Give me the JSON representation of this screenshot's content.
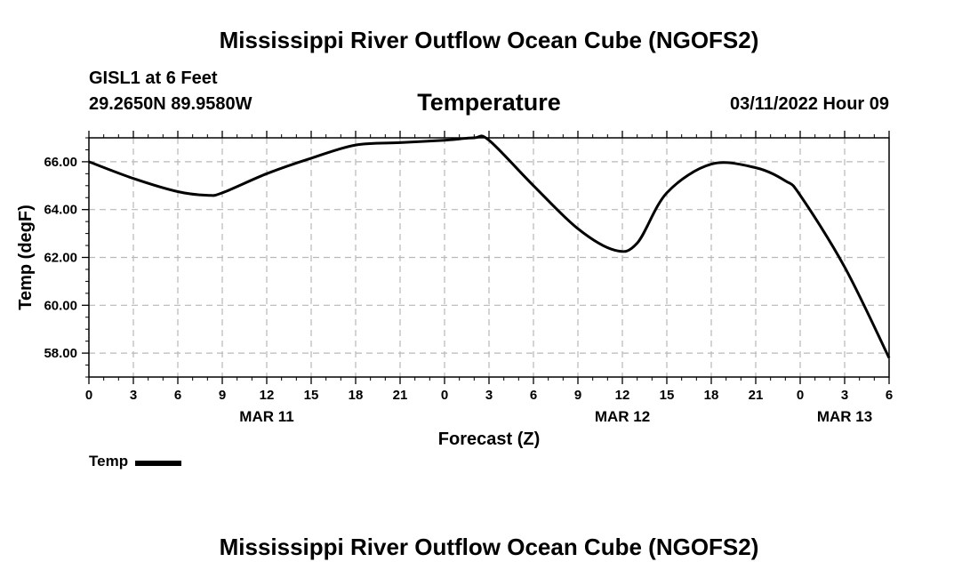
{
  "header": {
    "title": "Mississippi River Outflow Ocean Cube (NGOFS2)",
    "station": "GISL1 at 6 Feet",
    "coordinates": "29.2650N  89.9580W",
    "plot_title": "Temperature",
    "datetime": "03/11/2022 Hour 09"
  },
  "legend": {
    "label": "Temp"
  },
  "footer": {
    "title": "Mississippi River Outflow Ocean Cube (NGOFS2)"
  },
  "chart_data": {
    "type": "line",
    "title": "Temperature",
    "xlabel": "Forecast (Z)",
    "ylabel": "Temp (degF)",
    "xlim": [
      0,
      54
    ],
    "ylim": [
      57.0,
      67.0
    ],
    "grid": true,
    "legend_position": "bottom-left",
    "x_ticks": [
      {
        "x": 0,
        "label": "0"
      },
      {
        "x": 3,
        "label": "3"
      },
      {
        "x": 6,
        "label": "6"
      },
      {
        "x": 9,
        "label": "9"
      },
      {
        "x": 12,
        "label": "12"
      },
      {
        "x": 15,
        "label": "15"
      },
      {
        "x": 18,
        "label": "18"
      },
      {
        "x": 21,
        "label": "21"
      },
      {
        "x": 24,
        "label": "0"
      },
      {
        "x": 27,
        "label": "3"
      },
      {
        "x": 30,
        "label": "6"
      },
      {
        "x": 33,
        "label": "9"
      },
      {
        "x": 36,
        "label": "12"
      },
      {
        "x": 39,
        "label": "15"
      },
      {
        "x": 42,
        "label": "18"
      },
      {
        "x": 45,
        "label": "21"
      },
      {
        "x": 48,
        "label": "0"
      },
      {
        "x": 51,
        "label": "3"
      },
      {
        "x": 54,
        "label": "6"
      }
    ],
    "date_labels": [
      {
        "x": 12,
        "label": "MAR 11"
      },
      {
        "x": 36,
        "label": "MAR 12"
      },
      {
        "x": 51,
        "label": "MAR 13"
      }
    ],
    "y_ticks": [
      {
        "y": 58,
        "label": "58.00"
      },
      {
        "y": 60,
        "label": "60.00"
      },
      {
        "y": 62,
        "label": "62.00"
      },
      {
        "y": 64,
        "label": "64.00"
      },
      {
        "y": 66,
        "label": "66.00"
      }
    ],
    "series": [
      {
        "name": "Temp",
        "color": "#000000",
        "x": [
          0,
          3,
          6,
          8,
          9,
          12,
          15,
          18,
          21,
          24,
          26,
          27,
          30,
          33,
          35.5,
          37,
          39,
          42,
          45,
          47,
          48,
          51,
          54
        ],
        "values": [
          66.0,
          65.3,
          64.75,
          64.6,
          64.7,
          65.5,
          66.15,
          66.7,
          66.8,
          66.9,
          67.0,
          66.9,
          65.0,
          63.2,
          62.3,
          62.6,
          64.7,
          65.9,
          65.75,
          65.2,
          64.6,
          61.6,
          57.8
        ]
      }
    ]
  }
}
